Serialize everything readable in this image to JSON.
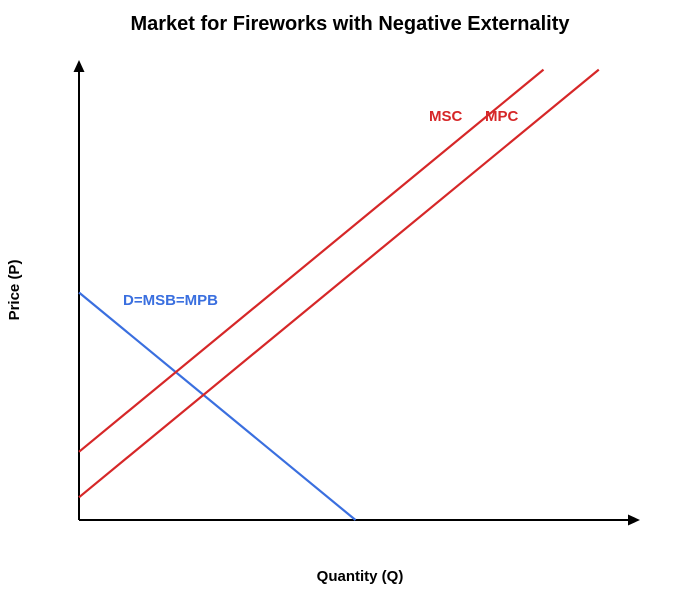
{
  "chart_data": {
    "type": "line",
    "title": "Market for Fireworks with Negative Externality",
    "xlabel": "Quantity (Q)",
    "ylabel": "Price (P)",
    "xlim": [
      0,
      100
    ],
    "ylim": [
      0,
      100
    ],
    "grid": false,
    "tick_labels": false,
    "series": [
      {
        "name": "D=MSB=MPB",
        "color": "#3a6fdf",
        "x": [
          0,
          50
        ],
        "y": [
          50,
          0
        ]
      },
      {
        "name": "MSC",
        "color": "#d62728",
        "x": [
          0,
          84
        ],
        "y": [
          15,
          99
        ]
      },
      {
        "name": "MPC",
        "color": "#d62728",
        "x": [
          0,
          94
        ],
        "y": [
          5,
          99
        ]
      }
    ]
  }
}
